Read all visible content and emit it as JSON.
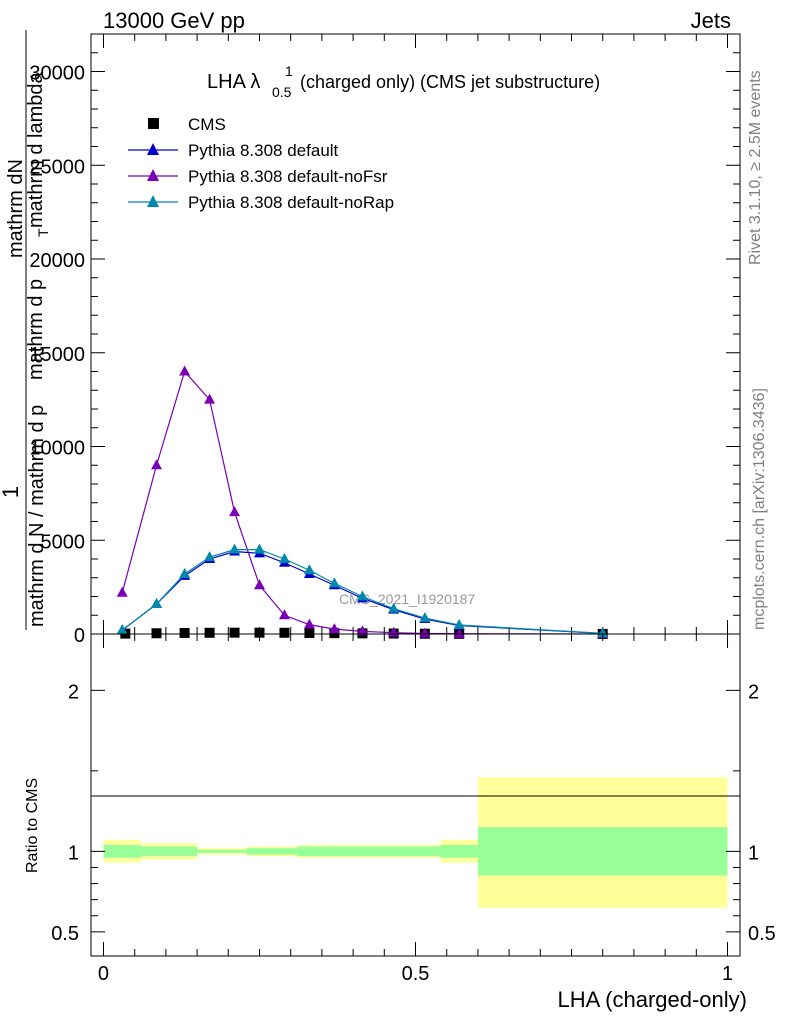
{
  "header": {
    "left": "13000 GeV pp",
    "right": "Jets"
  },
  "side_labels": {
    "rivet": "Rivet 3.1.10, ≥ 2.5M events",
    "mcplots": "mcplots.cern.ch [arXiv:1306.3436]"
  },
  "watermark": "CMS_2021_I1920187",
  "y_axis_label": {
    "numerator_1": "1",
    "numerator_2": "mathrm dN",
    "denominator_1": "mathrm d N / mathrm d p",
    "denominator_2": "mathrm d p",
    "denominator_3": "mathrm d lambda",
    "subscript_T": "T",
    "text_1": "mathrm d p",
    "text_2": "mathrm d lambda"
  },
  "chart_data": [
    {
      "type": "line",
      "title": "LHA λ",
      "title_sup": "1",
      "title_sub": "0.5",
      "title_rest": "(charged only) (CMS jet substructure)",
      "ylim": [
        0,
        32000
      ],
      "xlim": [
        -0.02,
        1.02
      ],
      "y_ticks": [
        0,
        5000,
        10000,
        15000,
        20000,
        25000,
        30000
      ],
      "y_tick_labels": [
        "0",
        "5000",
        "10000",
        "15000",
        "20000",
        "25000",
        "30000"
      ],
      "legend_position": "top-left",
      "legend": [
        "CMS",
        "Pythia 8.308 default",
        "Pythia 8.308 default-noFsr",
        "Pythia 8.308 default-noRap"
      ],
      "series": [
        {
          "name": "CMS",
          "color": "#000000",
          "marker": "square",
          "x": [
            0.035,
            0.085,
            0.13,
            0.17,
            0.21,
            0.25,
            0.29,
            0.33,
            0.37,
            0.415,
            0.465,
            0.515,
            0.57,
            0.8
          ],
          "y": [
            20,
            40,
            55,
            65,
            70,
            70,
            65,
            55,
            45,
            35,
            25,
            15,
            10,
            5
          ]
        },
        {
          "name": "Pythia 8.308 default",
          "color": "#0000cc",
          "marker": "triangle",
          "x": [
            0.03,
            0.085,
            0.13,
            0.17,
            0.21,
            0.25,
            0.29,
            0.33,
            0.37,
            0.415,
            0.465,
            0.515,
            0.57,
            0.8
          ],
          "y": [
            200,
            1600,
            3100,
            4000,
            4400,
            4300,
            3800,
            3200,
            2600,
            1900,
            1300,
            800,
            450,
            30
          ]
        },
        {
          "name": "Pythia 8.308 default-noFsr",
          "color": "#7a00b5",
          "marker": "triangle",
          "x": [
            0.03,
            0.085,
            0.13,
            0.17,
            0.21,
            0.25,
            0.29,
            0.33,
            0.37,
            0.415,
            0.465,
            0.515,
            0.57,
            0.8
          ],
          "y": [
            2200,
            9000,
            14000,
            12500,
            6500,
            2600,
            1000,
            500,
            260,
            140,
            70,
            30,
            15,
            3
          ]
        },
        {
          "name": "Pythia 8.308 default-noRap",
          "color": "#0088aa",
          "marker": "triangle",
          "x": [
            0.03,
            0.085,
            0.13,
            0.17,
            0.21,
            0.25,
            0.29,
            0.33,
            0.37,
            0.415,
            0.465,
            0.515,
            0.57,
            0.8
          ],
          "y": [
            200,
            1600,
            3200,
            4100,
            4500,
            4500,
            4000,
            3400,
            2700,
            2000,
            1350,
            850,
            480,
            35
          ]
        }
      ]
    },
    {
      "type": "area",
      "ylabel": "Ratio to CMS",
      "xlabel": "LHA (charged-only)",
      "xlim": [
        -0.02,
        1.02
      ],
      "ylim": [
        0.35,
        2.35
      ],
      "x_ticks": [
        0,
        0.5,
        1
      ],
      "x_tick_labels": [
        "0",
        "0.5",
        "1"
      ],
      "y_ticks": [
        0.5,
        1,
        2
      ],
      "y_tick_labels": [
        "0.5",
        "1",
        "2"
      ],
      "bins": [
        {
          "x0": 0.0,
          "x1": 0.06,
          "inner": [
            0.96,
            1.04
          ],
          "outer": [
            0.93,
            1.07
          ]
        },
        {
          "x0": 0.06,
          "x1": 0.15,
          "inner": [
            0.97,
            1.03
          ],
          "outer": [
            0.95,
            1.05
          ]
        },
        {
          "x0": 0.15,
          "x1": 0.23,
          "inner": [
            0.99,
            1.01
          ],
          "outer": [
            0.98,
            1.02
          ]
        },
        {
          "x0": 0.23,
          "x1": 0.27,
          "inner": [
            0.98,
            1.02
          ],
          "outer": [
            0.97,
            1.03
          ]
        },
        {
          "x0": 0.27,
          "x1": 0.31,
          "inner": [
            0.98,
            1.02
          ],
          "outer": [
            0.97,
            1.03
          ]
        },
        {
          "x0": 0.31,
          "x1": 0.35,
          "inner": [
            0.97,
            1.03
          ],
          "outer": [
            0.96,
            1.04
          ]
        },
        {
          "x0": 0.35,
          "x1": 0.44,
          "inner": [
            0.97,
            1.03
          ],
          "outer": [
            0.96,
            1.04
          ]
        },
        {
          "x0": 0.44,
          "x1": 0.54,
          "inner": [
            0.97,
            1.03
          ],
          "outer": [
            0.96,
            1.04
          ]
        },
        {
          "x0": 0.54,
          "x1": 0.6,
          "inner": [
            0.96,
            1.04
          ],
          "outer": [
            0.93,
            1.07
          ]
        },
        {
          "x0": 0.6,
          "x1": 1.0,
          "inner": [
            0.85,
            1.15
          ],
          "outer": [
            0.65,
            1.46
          ]
        }
      ],
      "inner_color": "#99ff99",
      "outer_color": "#ffff99",
      "reference": 1
    }
  ]
}
